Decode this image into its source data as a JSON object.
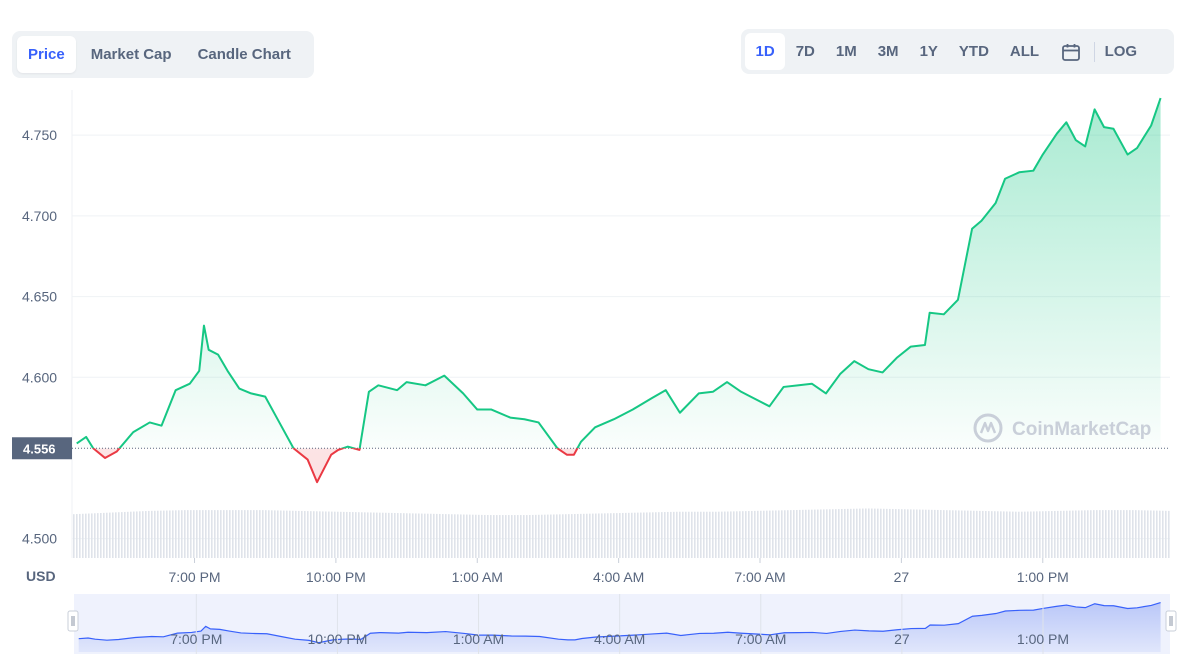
{
  "view_tabs": [
    "Price",
    "Market Cap",
    "Candle Chart"
  ],
  "active_view": "Price",
  "ranges": [
    "1D",
    "7D",
    "1M",
    "3M",
    "1Y",
    "YTD",
    "ALL"
  ],
  "active_range": "1D",
  "log_label": "LOG",
  "calendar_icon": "calendar-icon",
  "currency_label": "USD",
  "current_price": "4.556",
  "watermark": "CoinMarketCap",
  "colors": {
    "up": "#16c784",
    "down": "#ea3943",
    "accent": "#3861fb",
    "grid": "#eff2f5",
    "volume": "#dfe3ea",
    "navigator_fill": "#d7def9",
    "navigator_line": "#3861fb"
  },
  "chart_data": {
    "type": "line",
    "title": "",
    "xlabel": "",
    "ylabel": "USD",
    "baseline": 4.556,
    "ylim": [
      4.488,
      4.778
    ],
    "y_ticks": [
      "4.750",
      "4.700",
      "4.650",
      "4.600",
      "4.500"
    ],
    "x_ticks": [
      "7:00 PM",
      "10:00 PM",
      "1:00 AM",
      "4:00 AM",
      "7:00 AM",
      "27",
      "1:00 PM"
    ],
    "x_tick_hours": [
      2.5,
      5.5,
      8.5,
      11.5,
      14.5,
      17.5,
      20.5
    ],
    "x_range_hours": [
      -0.1,
      23.2
    ],
    "grid": true,
    "series": [
      {
        "x": [
          0,
          0.2,
          0.35,
          0.6,
          0.85,
          1.2,
          1.55,
          1.8,
          2.1,
          2.4,
          2.6,
          2.7,
          2.8,
          3.0,
          3.2,
          3.45,
          3.7,
          4.0,
          4.3,
          4.6,
          4.9,
          5.1,
          5.4,
          5.55,
          5.75,
          6.0,
          6.2,
          6.4,
          6.8,
          7.0,
          7.4,
          7.8,
          8.2,
          8.5,
          8.8,
          9.2,
          9.5,
          9.8,
          10.2,
          10.4,
          10.55,
          10.7,
          11.0,
          11.4,
          11.8,
          12.2,
          12.5,
          12.8,
          13.2,
          13.5,
          13.8,
          14.1,
          14.3,
          14.7,
          15.0,
          15.3,
          15.6,
          15.9,
          16.2,
          16.5,
          16.8,
          17.1,
          17.4,
          17.7,
          18.0,
          18.1,
          18.4,
          18.7,
          19.0,
          19.2,
          19.5,
          19.7,
          20.0,
          20.3,
          20.5,
          20.8,
          21.0,
          21.2,
          21.4,
          21.6,
          21.8,
          22.0,
          22.3,
          22.5,
          22.8,
          23.0
        ],
        "y": [
          4.559,
          4.563,
          4.556,
          4.55,
          4.554,
          4.566,
          4.572,
          4.57,
          4.592,
          4.596,
          4.604,
          4.632,
          4.617,
          4.614,
          4.604,
          4.593,
          4.59,
          4.588,
          4.572,
          4.556,
          4.549,
          4.535,
          4.552,
          4.555,
          4.557,
          4.555,
          4.591,
          4.595,
          4.592,
          4.597,
          4.595,
          4.601,
          4.59,
          4.58,
          4.58,
          4.575,
          4.574,
          4.572,
          4.556,
          4.552,
          4.552,
          4.56,
          4.569,
          4.574,
          4.58,
          4.587,
          4.592,
          4.578,
          4.59,
          4.591,
          4.597,
          4.591,
          4.588,
          4.582,
          4.594,
          4.595,
          4.596,
          4.59,
          4.602,
          4.61,
          4.605,
          4.603,
          4.612,
          4.619,
          4.62,
          4.64,
          4.639,
          4.648,
          4.692,
          4.697,
          4.708,
          4.723,
          4.727,
          4.728,
          4.738,
          4.751,
          4.758,
          4.747,
          4.743,
          4.766,
          4.755,
          4.754,
          4.738,
          4.742,
          4.756,
          4.773
        ]
      }
    ],
    "volume_relative": [
      0.53,
      0.55,
      0.57,
      0.58,
      0.58,
      0.58,
      0.57,
      0.56,
      0.55,
      0.54,
      0.53,
      0.52,
      0.52,
      0.53,
      0.54,
      0.55,
      0.56,
      0.56,
      0.57,
      0.58,
      0.59,
      0.6,
      0.59,
      0.58,
      0.57,
      0.56,
      0.57,
      0.58,
      0.58,
      0.57
    ]
  }
}
